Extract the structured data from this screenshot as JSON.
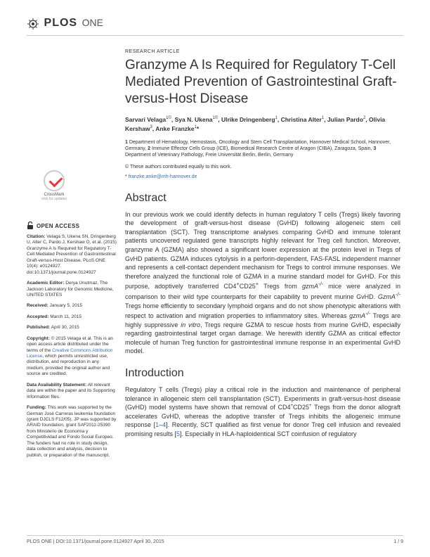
{
  "journal": {
    "logo_text": "PLOS",
    "logo_sub": "ONE"
  },
  "article": {
    "type": "RESEARCH ARTICLE",
    "title": "Granzyme A Is Required for Regulatory T-Cell Mediated Prevention of Gastrointestinal Graft-versus-Host Disease",
    "authors_html": "Sarvari Velaga<sup>1©</sup>, Sya N. Ukena<sup>1©</sup>, Ulrike Dringenberg<sup>1</sup>, Christina Alter<sup>1</sup>, Julian Pardo<sup>2</sup>, Olivia Kershaw<sup>3</sup>, Anke Franzke<sup>1</sup>*",
    "affiliations_html": "<strong>1</strong> Department of Hematology, Hemostasis, Oncology and Stem Cell Transplantation, Hannover Medical School, Hannover, Germany, <strong>2</strong> Immune Effector Cells Group (ICE), Biomedical Research Centre of Aragon (CIBA), Zaragoza, Spain, <strong>3</strong> Department of Veterinary Pathology, Freie Universität Berlin, Berlin, Germany",
    "equal_contrib": "© These authors contributed equally to this work.",
    "corresponding": "*",
    "email": "franzke.anke@mh-hannover.de"
  },
  "abstract": {
    "heading": "Abstract",
    "text_html": "In our previous work we could identify defects in human regulatory T cells (Tregs) likely favoring the development of graft-versus-host disease (GvHD) following allogeneic stem cell transplantation (SCT). Treg transcriptome analyses comparing GvHD and immune tolerant patients uncovered regulated gene transcripts highly relevant for Treg cell function. Moreover, granzyme A (GZMA) also showed a significant lower expression at the protein level in Tregs of GvHD patients. GZMA induces cytolysis in a perforin-dependent, FAS-FASL independent manner and represents a cell-contact dependent mechanism for Tregs to control immune responses. We therefore analyzed the functional role of GZMA in a murine standard model for GvHD. For this purpose, adoptively transferred CD4<sup>+</sup>CD25<sup>+</sup> Tregs from <span class=\"italic\">gzmA<sup>-/-</sup></span> mice were analyzed in comparison to their wild type counterparts for their capability to prevent murine GvHD. <span class=\"italic\">GzmA<sup>-/-</sup></span> Tregs home efficiently to secondary lymphoid organs and do not show phenotypic alterations with respect to activation and migration properties to inflammatory sites. Whereas <span class=\"italic\">gzmA<sup>-/-</sup></span> Tregs are highly suppressive <span class=\"italic\">in vitro</span>, Tregs require GZMA to rescue hosts from murine GvHD, especially regarding gastrointestinal target organ damage. We herewith identify GZMA as critical effector molecule of human Treg function for gastrointestinal immune response in an experimental GvHD model."
  },
  "introduction": {
    "heading": "Introduction",
    "text_html": "Regulatory T cells (Tregs) play a critical role in the induction and maintenance of peripheral tolerance in allogeneic stem cell transplantation (SCT). Experiments in graft-versus-host disease (GvHD) model systems have shown that removal of CD4<sup>+</sup>CD25<sup>+</sup> Tregs from the donor allograft accelerates GvHD, whereas the adoptive transfer of Tregs inhibits the allogeneic immune response [<span class=\"ref-link\">1</span>–<span class=\"ref-link\">4</span>]. Recently, SCT qualified as first venue for donor Treg cell infusion and revealed promising results [<span class=\"ref-link\">5</span>]. Especially in HLA-haploidentical SCT coinfusion of regulatory"
  },
  "sidebar": {
    "open_access": "OPEN ACCESS",
    "crossmark": "CrossMark",
    "crossmark_sub": "click for updates",
    "citation_html": "<strong>Citation:</strong> Velaga S, Ukena SN, Dringenberg U, Alter C, Pardo J, Kershaw O, et al. (2015) Granzyme A Is Required for Regulatory T-Cell Mediated Prevention of Gastrointestinal Graft-versus-Host Disease. PLoS ONE 10(4): e0124927. doi:10.1371/journal.pone.0124927",
    "editor_html": "<strong>Academic Editor:</strong> Derya Unutmaz, The Jackson Laboratory for Genomic Medicine, UNITED STATES",
    "received_html": "<strong>Received:</strong> January 5, 2015",
    "accepted_html": "<strong>Accepted:</strong> March 11, 2015",
    "published_html": "<strong>Published:</strong> April 30, 2015",
    "copyright_html": "<strong>Copyright:</strong> © 2015 Velaga et al. This is an open access article distributed under the terms of the <span class=\"sidebar-link\">Creative Commons Attribution License</span>, which permits unrestricted use, distribution, and reproduction in any medium, provided the original author and source are credited.",
    "data_html": "<strong>Data Availability Statement:</strong> All relevant data are within the paper and its Supporting Information files.",
    "funding_html": "<strong>Funding:</strong> This work was supported by the German José Carreras leukemia foundation (grant DJCLS F12/05). JP was supported by ARAID foundation, grant SAF2011-25390 from Ministerio de Economia y Competitividad and Fondo Social Europeo. The funders had no role in study design, data collection and analysis, decision to publish, or preparation of the manuscript."
  },
  "footer": {
    "left": "PLOS ONE | DOI:10.1371/journal.pone.0124927   April 30, 2015",
    "right": "1 / 9"
  },
  "colors": {
    "link": "#3c6eb4",
    "text": "#333333",
    "divider": "#cccccc"
  }
}
